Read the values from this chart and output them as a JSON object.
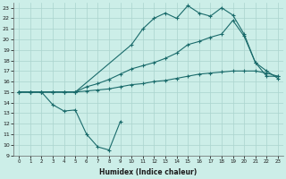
{
  "xlabel": "Humidex (Indice chaleur)",
  "bg_color": "#cceee8",
  "grid_color": "#aad4ce",
  "line_color": "#1a6b6b",
  "xlim": [
    -0.5,
    23.5
  ],
  "ylim": [
    9,
    23.5
  ],
  "yticks": [
    9,
    10,
    11,
    12,
    13,
    14,
    15,
    16,
    17,
    18,
    19,
    20,
    21,
    22,
    23
  ],
  "xticks": [
    0,
    1,
    2,
    3,
    4,
    5,
    6,
    7,
    8,
    9,
    10,
    11,
    12,
    13,
    14,
    15,
    16,
    17,
    18,
    19,
    20,
    21,
    22,
    23
  ],
  "line_low_x": [
    0,
    1,
    2,
    3,
    4,
    5,
    6,
    7,
    8,
    9
  ],
  "line_low_y": [
    15.0,
    15.0,
    15.0,
    13.8,
    13.2,
    13.3,
    11.0,
    9.8,
    9.5,
    12.2
  ],
  "line_top_x": [
    0,
    1,
    2,
    3,
    4,
    5,
    10,
    11,
    12,
    13,
    14,
    15,
    16,
    17,
    18,
    19,
    20,
    21,
    22,
    23
  ],
  "line_top_y": [
    15.0,
    15.0,
    15.0,
    15.0,
    15.0,
    15.0,
    19.5,
    21.0,
    22.0,
    22.5,
    22.0,
    23.2,
    22.5,
    22.2,
    23.0,
    22.3,
    20.5,
    17.8,
    16.5,
    16.5
  ],
  "line_mid_x": [
    0,
    1,
    2,
    3,
    4,
    5,
    6,
    7,
    8,
    9,
    10,
    11,
    12,
    13,
    14,
    15,
    16,
    17,
    18,
    19,
    20,
    21,
    22,
    23
  ],
  "line_mid_y": [
    15.0,
    15.0,
    15.0,
    15.0,
    15.0,
    15.0,
    15.5,
    15.8,
    16.2,
    16.7,
    17.2,
    17.5,
    17.8,
    18.2,
    18.7,
    19.5,
    19.8,
    20.2,
    20.5,
    21.8,
    20.3,
    17.8,
    17.0,
    16.3
  ],
  "line_flat_x": [
    0,
    1,
    2,
    3,
    4,
    5,
    6,
    7,
    8,
    9,
    10,
    11,
    12,
    13,
    14,
    15,
    16,
    17,
    18,
    19,
    20,
    21,
    22,
    23
  ],
  "line_flat_y": [
    15.0,
    15.0,
    15.0,
    15.0,
    15.0,
    15.0,
    15.1,
    15.2,
    15.3,
    15.5,
    15.7,
    15.8,
    16.0,
    16.1,
    16.3,
    16.5,
    16.7,
    16.8,
    16.9,
    17.0,
    17.0,
    17.0,
    16.8,
    16.5
  ]
}
